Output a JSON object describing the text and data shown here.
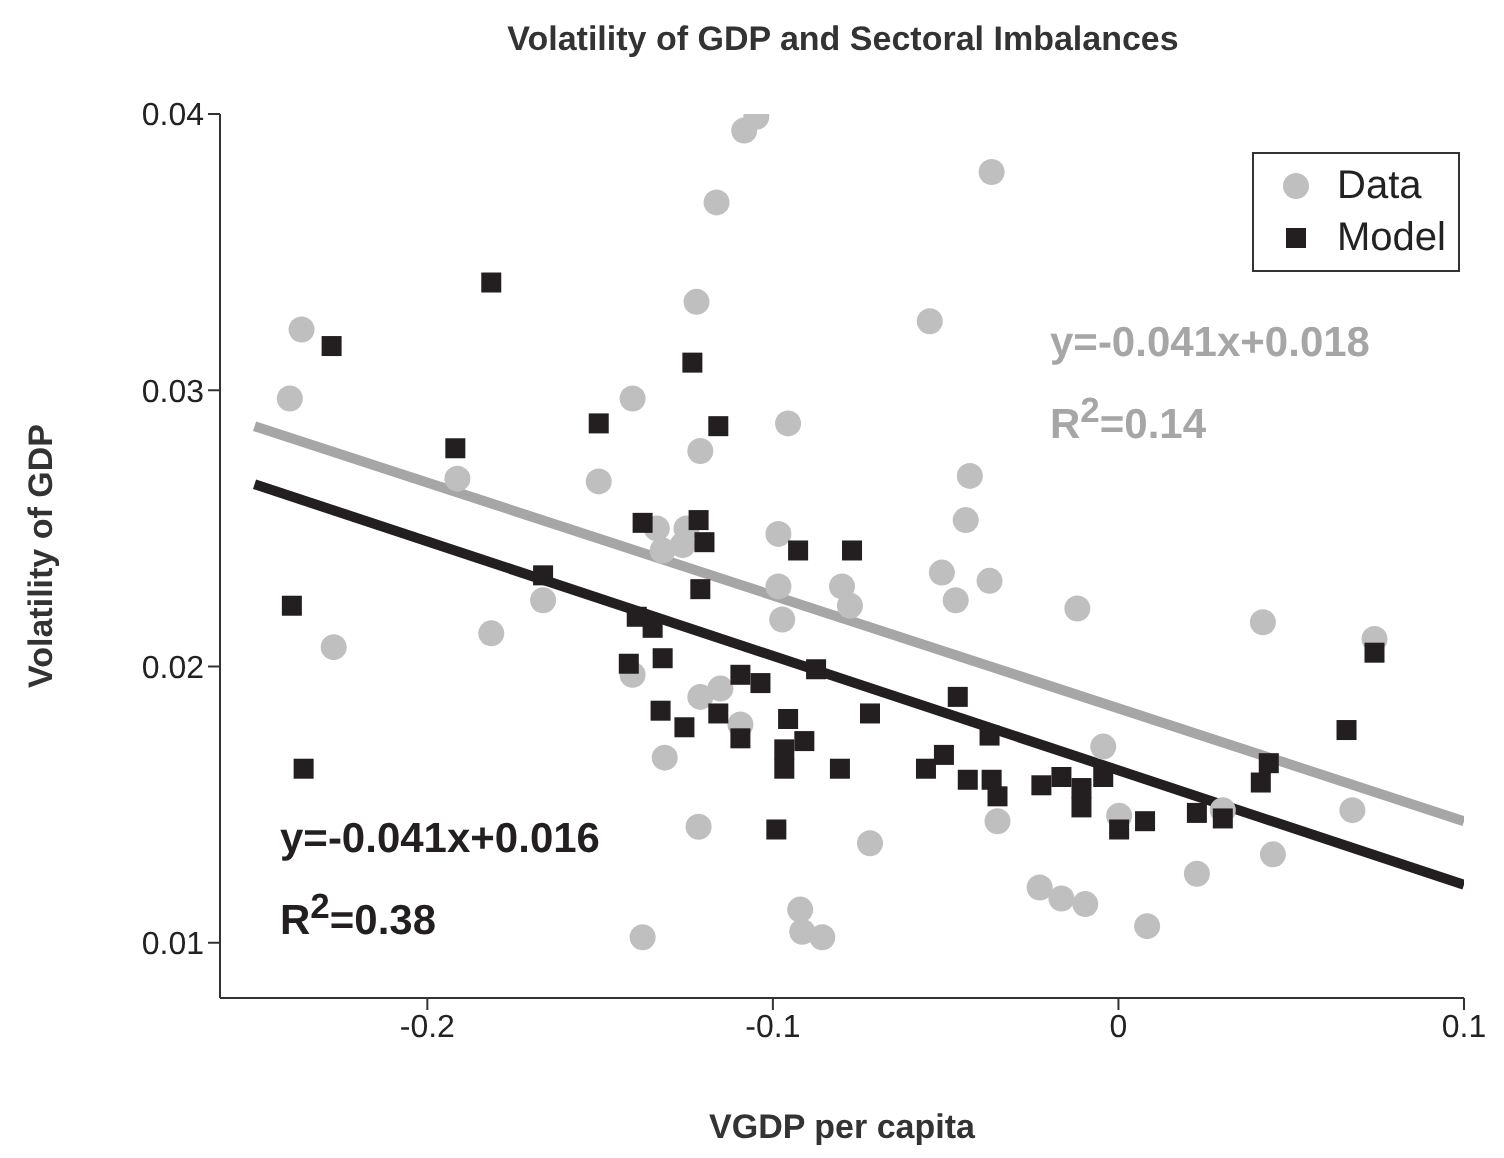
{
  "chart_data": {
    "type": "scatter",
    "title": "Volatility of GDP and Sectoral Imbalances",
    "xlabel": "VGDP per capita",
    "ylabel": "Volatility of GDP",
    "xlim": [
      -0.26,
      0.1
    ],
    "xticks": [
      -0.2,
      -0.1,
      0,
      0.1
    ],
    "ylim": [
      0.008,
      0.04
    ],
    "yticks": [
      0.01,
      0.02,
      0.03,
      0.04
    ],
    "grid": false,
    "legend": "top right",
    "annotations": [
      "y=-0.041x+0.018",
      "R$^{2}$=0.14",
      "y=-0.041x+0.016",
      "R$^{2}$=0.38"
    ],
    "series": [
      {
        "name": "Data",
        "marker": "circle",
        "color": "#bfbfbf",
        "x": [
          -0.2364,
          -0.2398,
          -0.1913,
          -0.1504,
          -0.1406,
          -0.1221,
          -0.1163,
          -0.1083,
          -0.1048,
          -0.121,
          -0.0956,
          -0.0984,
          -0.1336,
          -0.125,
          -0.1261,
          -0.1319,
          -0.0367,
          -0.0546,
          -0.043,
          -0.0442,
          -0.2271,
          -0.1815,
          -0.1665,
          -0.1406,
          -0.121,
          -0.1152,
          -0.1094,
          -0.1313,
          -0.0984,
          -0.0973,
          -0.08,
          -0.0777,
          -0.1215,
          -0.1377,
          -0.0921,
          -0.0915,
          -0.0857,
          -0.0719,
          -0.0511,
          -0.0373,
          -0.0471,
          -0.0119,
          0.0418,
          0.0741,
          -0.0044,
          -0.035,
          0.0002,
          0.0302,
          0.0677,
          0.0447,
          0.0227,
          -0.0228,
          -0.0165,
          -0.0096,
          0.0083
        ],
        "values": [
          0.0322,
          0.0297,
          0.0268,
          0.0267,
          0.0297,
          0.0332,
          0.0368,
          0.0394,
          0.0399,
          0.0278,
          0.0288,
          0.0248,
          0.025,
          0.025,
          0.0244,
          0.0242,
          0.0379,
          0.0325,
          0.0269,
          0.0253,
          0.0207,
          0.0212,
          0.0224,
          0.0197,
          0.0189,
          0.0192,
          0.0179,
          0.0167,
          0.0229,
          0.0217,
          0.0229,
          0.0222,
          0.0142,
          0.0102,
          0.0112,
          0.0104,
          0.0102,
          0.0136,
          0.0234,
          0.0231,
          0.0224,
          0.0221,
          0.0216,
          0.021,
          0.0171,
          0.0144,
          0.0146,
          0.0148,
          0.0148,
          0.0132,
          0.0125,
          0.012,
          0.0116,
          0.0114,
          0.0106
        ]
      },
      {
        "name": "Model",
        "marker": "square",
        "color": "#231f20",
        "x": [
          -0.1815,
          -0.2277,
          -0.1233,
          -0.1504,
          -0.1158,
          -0.1919,
          -0.1377,
          -0.1215,
          -0.1198,
          -0.0927,
          -0.0771,
          -0.2392,
          -0.2358,
          -0.1665,
          -0.1394,
          -0.1348,
          -0.1417,
          -0.1319,
          -0.121,
          -0.1094,
          -0.1036,
          -0.0875,
          -0.1325,
          -0.1256,
          -0.1158,
          -0.1094,
          -0.0956,
          -0.0909,
          -0.0967,
          -0.0967,
          -0.0806,
          -0.099,
          -0.0719,
          -0.0465,
          -0.0373,
          -0.0557,
          -0.0505,
          -0.0436,
          -0.0367,
          -0.035,
          -0.0223,
          -0.0165,
          -0.0107,
          -0.0107,
          -0.0044,
          0.0002,
          0.0077,
          0.0227,
          0.0302,
          0.0412,
          0.0435,
          0.066,
          0.0741
        ],
        "values": [
          0.0339,
          0.0316,
          0.031,
          0.0288,
          0.0287,
          0.0279,
          0.0252,
          0.0253,
          0.0245,
          0.0242,
          0.0242,
          0.0222,
          0.0163,
          0.0233,
          0.0218,
          0.0214,
          0.0201,
          0.0203,
          0.0228,
          0.0197,
          0.0194,
          0.0199,
          0.0184,
          0.0178,
          0.0183,
          0.0174,
          0.0181,
          0.0173,
          0.017,
          0.0163,
          0.0163,
          0.0141,
          0.0183,
          0.0189,
          0.0175,
          0.0163,
          0.0168,
          0.0159,
          0.0159,
          0.0153,
          0.0157,
          0.016,
          0.0156,
          0.0149,
          0.016,
          0.0141,
          0.0144,
          0.0147,
          0.0145,
          0.0158,
          0.0165,
          0.0177,
          0.0205
        ]
      },
      {
        "type": "line",
        "color": "#a6a6a6",
        "x": [
          -0.25,
          0.1
        ],
        "values": [
          0.0287,
          0.0144
        ]
      },
      {
        "type": "line",
        "color": "#231f20",
        "x": [
          -0.25,
          0.1
        ],
        "values": [
          0.0266,
          0.0121
        ]
      }
    ]
  }
}
